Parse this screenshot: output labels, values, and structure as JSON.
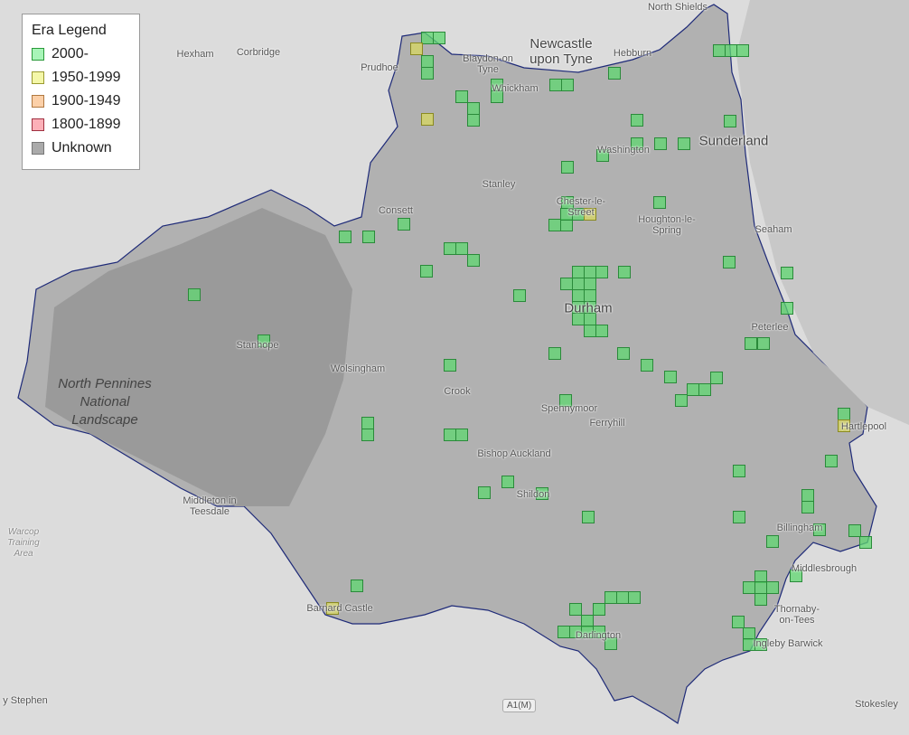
{
  "legend": {
    "title": "Era Legend",
    "items": [
      {
        "label": "2000-",
        "fill": "#a8f5b8",
        "stroke": "#2a9a3a"
      },
      {
        "label": "1950-1999",
        "fill": "#f4f7a8",
        "stroke": "#9a9a30"
      },
      {
        "label": "1900-1949",
        "fill": "#fcd0a8",
        "stroke": "#b07840"
      },
      {
        "label": "1800-1899",
        "fill": "#fcb0b8",
        "stroke": "#a03040"
      },
      {
        "label": "Unknown",
        "fill": "#aaaaaa",
        "stroke": "#777777"
      }
    ]
  },
  "colors": {
    "background": "#dcdcdc",
    "county_fill": "#a9a9a9",
    "county_border": "#1e2a78",
    "marker_green": "#5fd870",
    "marker_yellow": "#d8d860"
  },
  "places": {
    "north_shields": "North Shields",
    "hexham": "Hexham",
    "corbridge": "Corbridge",
    "prudhoe": "Prudhoe",
    "newcastle": "Newcastle upon Tyne",
    "hebburn": "Hebburn",
    "blaydon": "Blaydon-on Tyne",
    "whickham": "Whickham",
    "sunderland": "Sunderland",
    "washington": "Washington",
    "stanley": "Stanley",
    "chester": "Chester-le-Street",
    "consett": "Consett",
    "houghton": "Houghton-le-Spring",
    "seaham": "Seaham",
    "durham": "Durham",
    "peterlee": "Peterlee",
    "park": "North Pennines National Landscape",
    "stanhope": "Stanhope",
    "wolsingham": "Wolsingham",
    "crook": "Crook",
    "spennymoor": "Spennymoor",
    "ferryhill": "Ferryhill",
    "hartlepool": "Hartlepool",
    "bishop": "Bishop Auckland",
    "shildon": "Shildon",
    "middleton": "Middleton in Teesdale",
    "warcop": "Warcop Training Area",
    "billingham": "Billingham",
    "middlesbrough": "Middlesbrough",
    "barnard": "Barnard Castle",
    "thornaby": "Thornaby-on-Tees",
    "darlington": "Darlington",
    "ingleby": "Ingleby Barwick",
    "stephen": "y Stephen",
    "stokesley": "Stokesley",
    "a1m": "A1(M)"
  }
}
